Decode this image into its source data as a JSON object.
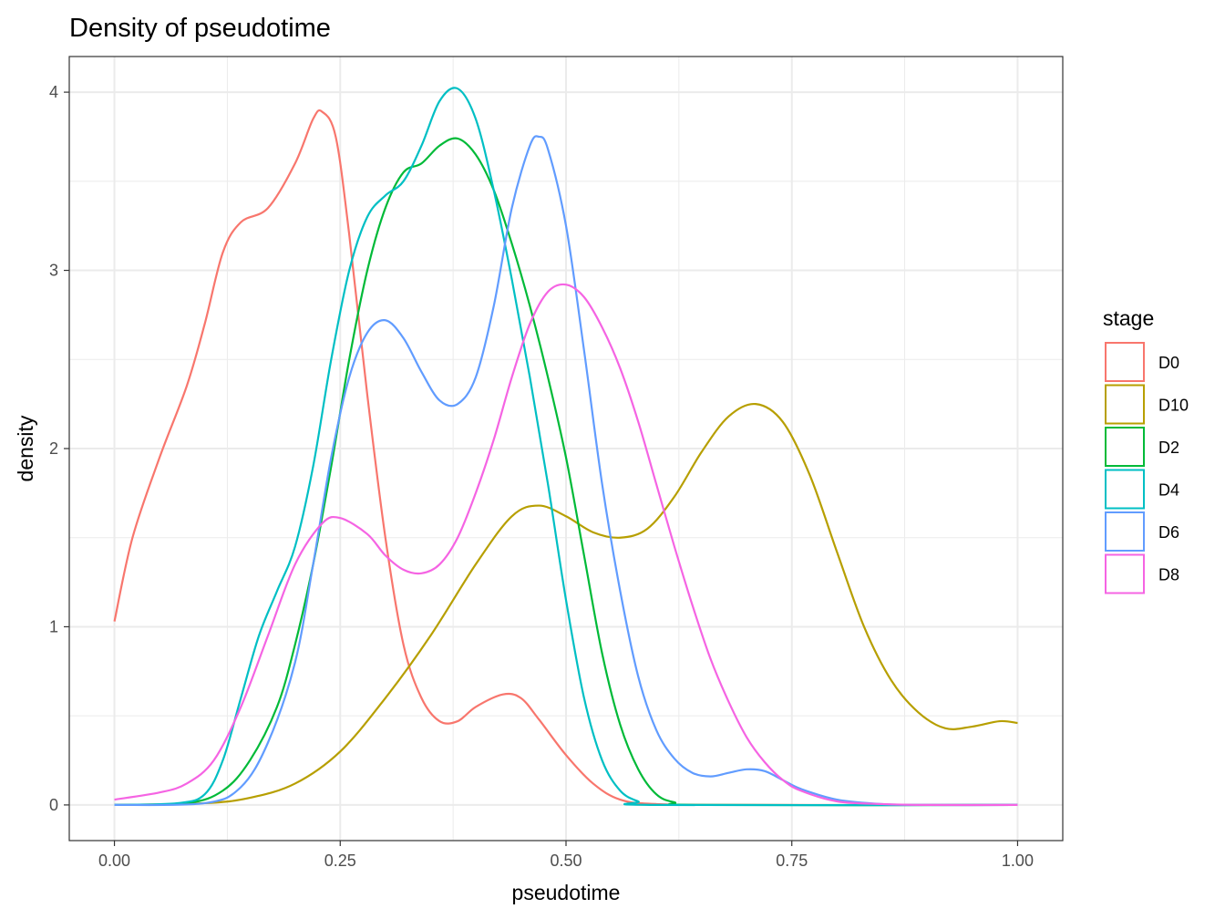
{
  "chart_data": {
    "type": "line",
    "title": "Density of pseudotime",
    "xlabel": "pseudotime",
    "ylabel": "density",
    "xlim": [
      -0.05,
      1.05
    ],
    "ylim": [
      -0.2,
      4.2
    ],
    "x_ticks": [
      0.0,
      0.25,
      0.5,
      0.75,
      1.0
    ],
    "x_tick_labels": [
      "0.00",
      "0.25",
      "0.50",
      "0.75",
      "1.00"
    ],
    "y_ticks": [
      0,
      1,
      2,
      3,
      4
    ],
    "y_tick_labels": [
      "0",
      "1",
      "2",
      "3",
      "4"
    ],
    "grid": true,
    "legend": {
      "title": "stage",
      "position": "right"
    },
    "series": [
      {
        "name": "D0",
        "color": "#F8766D",
        "points": [
          [
            0.0,
            1.03
          ],
          [
            0.02,
            1.5
          ],
          [
            0.05,
            1.95
          ],
          [
            0.08,
            2.35
          ],
          [
            0.1,
            2.7
          ],
          [
            0.12,
            3.1
          ],
          [
            0.14,
            3.27
          ],
          [
            0.17,
            3.35
          ],
          [
            0.2,
            3.6
          ],
          [
            0.22,
            3.85
          ],
          [
            0.23,
            3.89
          ],
          [
            0.245,
            3.75
          ],
          [
            0.26,
            3.2
          ],
          [
            0.28,
            2.3
          ],
          [
            0.3,
            1.5
          ],
          [
            0.32,
            0.9
          ],
          [
            0.34,
            0.6
          ],
          [
            0.36,
            0.47
          ],
          [
            0.38,
            0.47
          ],
          [
            0.4,
            0.55
          ],
          [
            0.43,
            0.62
          ],
          [
            0.45,
            0.6
          ],
          [
            0.47,
            0.48
          ],
          [
            0.5,
            0.28
          ],
          [
            0.53,
            0.12
          ],
          [
            0.56,
            0.03
          ],
          [
            0.6,
            0.005
          ],
          [
            0.7,
            0.0
          ],
          [
            1.0,
            0.0
          ]
        ]
      },
      {
        "name": "D10",
        "color": "#B79F00",
        "points": [
          [
            0.0,
            0.0
          ],
          [
            0.1,
            0.01
          ],
          [
            0.15,
            0.04
          ],
          [
            0.2,
            0.12
          ],
          [
            0.25,
            0.3
          ],
          [
            0.3,
            0.6
          ],
          [
            0.35,
            0.95
          ],
          [
            0.4,
            1.35
          ],
          [
            0.44,
            1.62
          ],
          [
            0.47,
            1.68
          ],
          [
            0.5,
            1.62
          ],
          [
            0.53,
            1.53
          ],
          [
            0.56,
            1.5
          ],
          [
            0.59,
            1.55
          ],
          [
            0.62,
            1.73
          ],
          [
            0.65,
            1.98
          ],
          [
            0.68,
            2.18
          ],
          [
            0.71,
            2.25
          ],
          [
            0.74,
            2.15
          ],
          [
            0.77,
            1.85
          ],
          [
            0.8,
            1.42
          ],
          [
            0.83,
            1.0
          ],
          [
            0.86,
            0.7
          ],
          [
            0.89,
            0.52
          ],
          [
            0.92,
            0.43
          ],
          [
            0.95,
            0.44
          ],
          [
            0.98,
            0.47
          ],
          [
            1.0,
            0.46
          ]
        ]
      },
      {
        "name": "D2",
        "color": "#00BA38",
        "points": [
          [
            0.0,
            0.0
          ],
          [
            0.08,
            0.01
          ],
          [
            0.12,
            0.08
          ],
          [
            0.15,
            0.25
          ],
          [
            0.18,
            0.55
          ],
          [
            0.2,
            0.9
          ],
          [
            0.22,
            1.35
          ],
          [
            0.24,
            1.9
          ],
          [
            0.26,
            2.5
          ],
          [
            0.28,
            3.0
          ],
          [
            0.3,
            3.35
          ],
          [
            0.32,
            3.55
          ],
          [
            0.34,
            3.6
          ],
          [
            0.36,
            3.7
          ],
          [
            0.38,
            3.74
          ],
          [
            0.4,
            3.65
          ],
          [
            0.42,
            3.45
          ],
          [
            0.44,
            3.15
          ],
          [
            0.46,
            2.8
          ],
          [
            0.48,
            2.4
          ],
          [
            0.5,
            1.95
          ],
          [
            0.52,
            1.4
          ],
          [
            0.54,
            0.85
          ],
          [
            0.56,
            0.45
          ],
          [
            0.58,
            0.2
          ],
          [
            0.6,
            0.06
          ],
          [
            0.62,
            0.015
          ],
          [
            0.65,
            0.0
          ],
          [
            1.0,
            0.0
          ]
        ]
      },
      {
        "name": "D4",
        "color": "#00BFC4",
        "points": [
          [
            0.0,
            0.0
          ],
          [
            0.07,
            0.01
          ],
          [
            0.1,
            0.06
          ],
          [
            0.12,
            0.25
          ],
          [
            0.14,
            0.6
          ],
          [
            0.16,
            0.95
          ],
          [
            0.18,
            1.2
          ],
          [
            0.2,
            1.45
          ],
          [
            0.22,
            1.9
          ],
          [
            0.24,
            2.5
          ],
          [
            0.26,
            3.0
          ],
          [
            0.28,
            3.3
          ],
          [
            0.3,
            3.42
          ],
          [
            0.32,
            3.5
          ],
          [
            0.34,
            3.7
          ],
          [
            0.36,
            3.95
          ],
          [
            0.38,
            4.02
          ],
          [
            0.4,
            3.85
          ],
          [
            0.42,
            3.45
          ],
          [
            0.44,
            2.95
          ],
          [
            0.46,
            2.4
          ],
          [
            0.48,
            1.8
          ],
          [
            0.5,
            1.15
          ],
          [
            0.52,
            0.6
          ],
          [
            0.54,
            0.25
          ],
          [
            0.56,
            0.08
          ],
          [
            0.58,
            0.02
          ],
          [
            0.6,
            0.0
          ],
          [
            1.0,
            0.0
          ]
        ]
      },
      {
        "name": "D6",
        "color": "#619CFF",
        "points": [
          [
            0.0,
            0.0
          ],
          [
            0.1,
            0.01
          ],
          [
            0.14,
            0.1
          ],
          [
            0.17,
            0.35
          ],
          [
            0.2,
            0.8
          ],
          [
            0.22,
            1.35
          ],
          [
            0.24,
            1.95
          ],
          [
            0.26,
            2.4
          ],
          [
            0.28,
            2.65
          ],
          [
            0.3,
            2.72
          ],
          [
            0.32,
            2.62
          ],
          [
            0.34,
            2.43
          ],
          [
            0.36,
            2.27
          ],
          [
            0.38,
            2.25
          ],
          [
            0.4,
            2.4
          ],
          [
            0.42,
            2.8
          ],
          [
            0.44,
            3.35
          ],
          [
            0.46,
            3.7
          ],
          [
            0.47,
            3.75
          ],
          [
            0.48,
            3.68
          ],
          [
            0.5,
            3.25
          ],
          [
            0.52,
            2.55
          ],
          [
            0.54,
            1.8
          ],
          [
            0.56,
            1.2
          ],
          [
            0.58,
            0.72
          ],
          [
            0.6,
            0.42
          ],
          [
            0.62,
            0.26
          ],
          [
            0.64,
            0.18
          ],
          [
            0.66,
            0.16
          ],
          [
            0.68,
            0.18
          ],
          [
            0.7,
            0.2
          ],
          [
            0.72,
            0.19
          ],
          [
            0.74,
            0.14
          ],
          [
            0.76,
            0.09
          ],
          [
            0.8,
            0.03
          ],
          [
            0.85,
            0.005
          ],
          [
            0.9,
            0.0
          ],
          [
            1.0,
            0.0
          ]
        ]
      },
      {
        "name": "D8",
        "color": "#F564E3",
        "points": [
          [
            0.0,
            0.03
          ],
          [
            0.05,
            0.07
          ],
          [
            0.08,
            0.12
          ],
          [
            0.11,
            0.25
          ],
          [
            0.14,
            0.55
          ],
          [
            0.17,
            0.95
          ],
          [
            0.2,
            1.35
          ],
          [
            0.23,
            1.58
          ],
          [
            0.25,
            1.61
          ],
          [
            0.28,
            1.52
          ],
          [
            0.3,
            1.4
          ],
          [
            0.32,
            1.32
          ],
          [
            0.34,
            1.3
          ],
          [
            0.36,
            1.35
          ],
          [
            0.38,
            1.5
          ],
          [
            0.4,
            1.75
          ],
          [
            0.42,
            2.05
          ],
          [
            0.44,
            2.4
          ],
          [
            0.46,
            2.7
          ],
          [
            0.48,
            2.88
          ],
          [
            0.5,
            2.92
          ],
          [
            0.52,
            2.85
          ],
          [
            0.54,
            2.68
          ],
          [
            0.56,
            2.45
          ],
          [
            0.58,
            2.15
          ],
          [
            0.6,
            1.8
          ],
          [
            0.62,
            1.45
          ],
          [
            0.64,
            1.12
          ],
          [
            0.66,
            0.82
          ],
          [
            0.68,
            0.58
          ],
          [
            0.7,
            0.38
          ],
          [
            0.72,
            0.24
          ],
          [
            0.74,
            0.14
          ],
          [
            0.76,
            0.08
          ],
          [
            0.8,
            0.02
          ],
          [
            0.85,
            0.005
          ],
          [
            0.9,
            0.0
          ],
          [
            1.0,
            0.0
          ]
        ]
      }
    ]
  }
}
